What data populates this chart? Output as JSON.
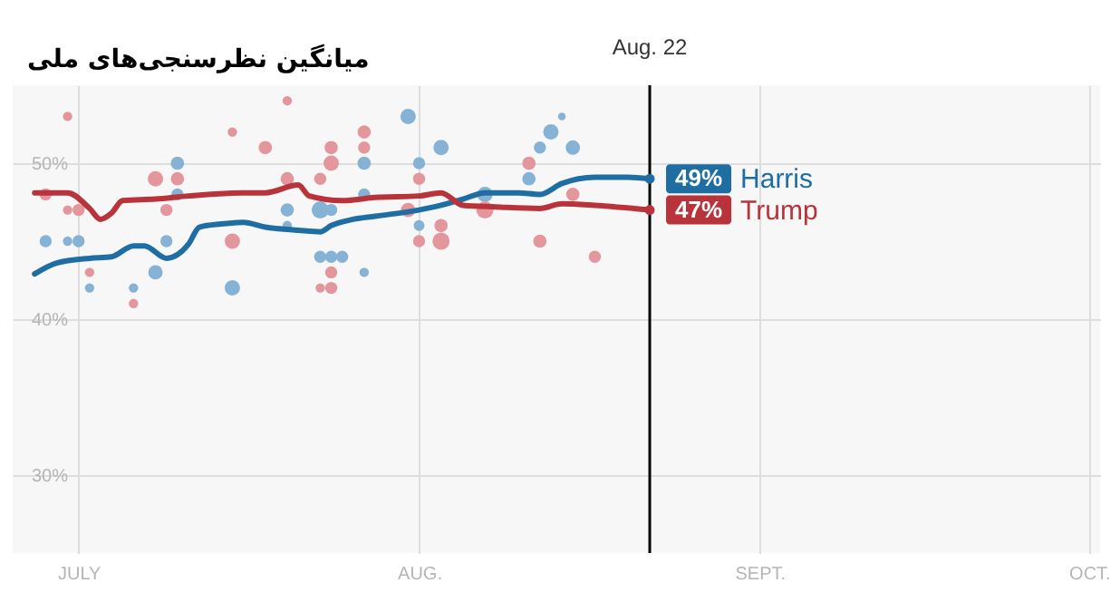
{
  "chart_data": {
    "type": "line",
    "title": "میانگین نظرسنجی‌های ملی",
    "xlim": [
      "--06-25",
      "--10-02"
    ],
    "xticks": [
      {
        "value": "--07-01",
        "label": "JULY"
      },
      {
        "value": "--08-01",
        "label": "AUG."
      },
      {
        "value": "--09-01",
        "label": "SEPT."
      },
      {
        "value": "--10-01",
        "label": "OCT."
      }
    ],
    "ylim": [
      25,
      55
    ],
    "yticks": [
      {
        "value": 30,
        "label": "30%"
      },
      {
        "value": 40,
        "label": "40%"
      },
      {
        "value": 50,
        "label": "50%"
      }
    ],
    "grid": true,
    "legend": "right",
    "series": [
      {
        "name": "Harris",
        "type": "line",
        "color": "#1f6ea3",
        "x": [
          "--06-27",
          "--06-29",
          "--07-02",
          "--07-04",
          "--07-06",
          "--07-07",
          "--07-09",
          "--07-11",
          "--07-12",
          "--07-14",
          "--07-16",
          "--07-18",
          "--07-21",
          "--07-23",
          "--07-24",
          "--07-26",
          "--07-28",
          "--08-01",
          "--08-03",
          "--08-05",
          "--08-07",
          "--08-10",
          "--08-12",
          "--08-14",
          "--08-17",
          "--08-20",
          "--08-22"
        ],
        "values": [
          42.9,
          43.6,
          43.9,
          44.0,
          44.7,
          44.7,
          43.9,
          44.8,
          45.9,
          46.1,
          46.2,
          45.9,
          45.7,
          45.6,
          46.0,
          46.4,
          46.6,
          47.0,
          47.3,
          47.7,
          48.1,
          48.1,
          48.0,
          48.7,
          49.1,
          49.1,
          49
        ]
      },
      {
        "name": "Trump",
        "type": "line",
        "color": "#b8333a",
        "x": [
          "--06-27",
          "--06-30",
          "--07-02",
          "--07-03",
          "--07-04",
          "--07-05",
          "--07-08",
          "--07-11",
          "--07-16",
          "--07-18",
          "--07-21",
          "--07-22",
          "--07-25",
          "--07-28",
          "--08-01",
          "--08-03",
          "--08-05",
          "--08-08",
          "--08-12",
          "--08-14",
          "--08-17",
          "--08-22"
        ],
        "values": [
          48.1,
          48.1,
          47.1,
          46.4,
          46.8,
          47.6,
          47.7,
          47.9,
          48.1,
          48.1,
          48.6,
          47.9,
          47.6,
          47.8,
          47.9,
          48.1,
          47.3,
          47.2,
          47.1,
          47.4,
          47.3,
          47
        ]
      },
      {
        "type": "bubble",
        "color": "#86b3d5",
        "x": [
          "--06-28",
          "--06-30",
          "--07-01",
          "--07-02",
          "--07-06",
          "--07-08",
          "--07-09",
          "--07-10",
          "--07-10",
          "--07-15",
          "--07-20",
          "--07-20",
          "--07-23",
          "--07-24",
          "--07-25",
          "--07-23",
          "--07-24",
          "--07-27",
          "--07-27",
          "--07-27",
          "--07-31",
          "--08-01",
          "--08-01",
          "--08-03",
          "--08-07",
          "--08-11",
          "--08-12",
          "--08-13",
          "--08-15",
          "--08-14"
        ],
        "values": [
          45,
          45,
          45,
          42,
          42,
          43,
          45,
          50,
          48,
          42,
          47,
          46,
          44,
          44,
          44,
          47,
          47,
          50,
          48,
          43,
          53,
          50,
          46,
          51,
          48,
          49,
          51,
          52,
          51,
          53
        ],
        "sizes": [
          0.5,
          0.3,
          0.5,
          0.3,
          0.3,
          0.7,
          0.5,
          0.6,
          0.5,
          0.8,
          0.6,
          0.3,
          0.5,
          0.5,
          0.5,
          1,
          0.5,
          0.6,
          0.5,
          0.3,
          0.8,
          0.5,
          0.4,
          0.8,
          0.8,
          0.6,
          0.5,
          0.8,
          0.7,
          0.2
        ]
      },
      {
        "type": "bubble",
        "color": "#e3979d",
        "x": [
          "--06-28",
          "--06-30",
          "--06-30",
          "--07-01",
          "--07-02",
          "--07-06",
          "--07-08",
          "--07-09",
          "--07-10",
          "--07-15",
          "--07-15",
          "--07-18",
          "--07-20",
          "--07-20",
          "--07-23",
          "--07-24",
          "--07-23",
          "--07-24",
          "--07-24",
          "--07-27",
          "--07-27",
          "--07-24",
          "--08-01",
          "--08-01",
          "--08-03",
          "--08-03",
          "--07-31",
          "--08-07",
          "--08-11",
          "--08-12",
          "--08-15",
          "--08-17"
        ],
        "values": [
          48,
          53,
          47,
          47,
          43,
          41,
          49,
          47,
          49,
          52,
          45,
          51,
          54,
          49,
          49,
          43,
          42,
          51,
          50,
          52,
          51,
          42,
          49,
          45,
          45,
          46,
          47,
          47,
          50,
          45,
          48,
          44
        ],
        "sizes": [
          0.5,
          0.3,
          0.3,
          0.5,
          0.3,
          0.3,
          0.8,
          0.5,
          0.6,
          0.3,
          0.8,
          0.6,
          0.3,
          0.6,
          0.5,
          0.5,
          0.3,
          0.6,
          0.8,
          0.6,
          0.5,
          0.5,
          0.5,
          0.5,
          1,
          0.6,
          0.7,
          1,
          0.6,
          0.6,
          0.6,
          0.5
        ]
      }
    ],
    "ref_lines": [
      {
        "axis": "x",
        "value": "--08-22",
        "label": "Aug. 22",
        "color": "#000000"
      }
    ],
    "annotations": [
      {
        "text": "49%",
        "x": "--08-22",
        "y": 49
      },
      {
        "text": "47%",
        "x": "--08-22",
        "y": 47
      }
    ]
  }
}
